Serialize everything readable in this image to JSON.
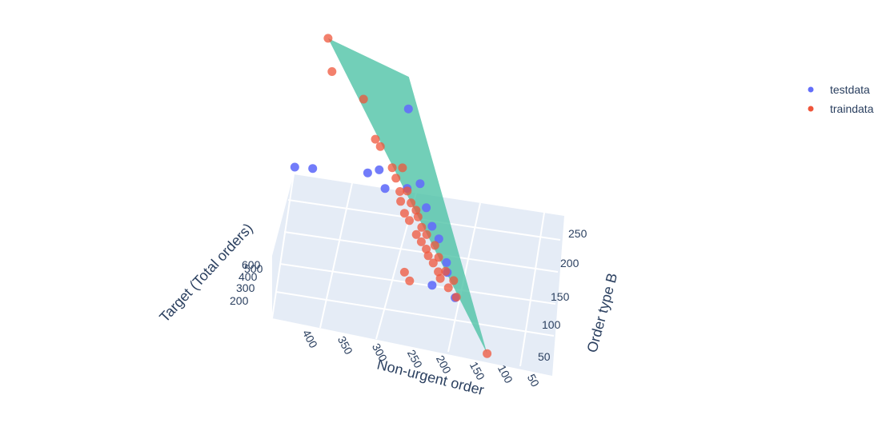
{
  "chart_data": {
    "type": "scatter3d",
    "axes": {
      "x": {
        "title": "Non-urgent order",
        "ticks": [
          400,
          350,
          300,
          250,
          200,
          150,
          100,
          50
        ]
      },
      "y": {
        "title": "Order type B",
        "ticks": [
          50,
          100,
          150,
          200,
          250
        ]
      },
      "z": {
        "title": "Target (Total orders)",
        "ticks": [
          200,
          300,
          400,
          500,
          600
        ]
      }
    },
    "legend": {
      "placement": "top-right",
      "entries": [
        {
          "name": "testdata",
          "color": "#636efa"
        },
        {
          "name": "traindata",
          "color": "#ef553b"
        }
      ]
    },
    "surface": {
      "name": "regression plane",
      "color": "#4fc3a6"
    },
    "series": [
      {
        "name": "testdata",
        "color": "#636efa",
        "points": [
          {
            "x": 395,
            "y": 110,
            "z": 560
          },
          {
            "x": 375,
            "y": 130,
            "z": 520
          },
          {
            "x": 265,
            "y": 250,
            "z": 510
          },
          {
            "x": 300,
            "y": 165,
            "z": 460
          },
          {
            "x": 285,
            "y": 175,
            "z": 455
          },
          {
            "x": 270,
            "y": 160,
            "z": 430
          },
          {
            "x": 240,
            "y": 175,
            "z": 410
          },
          {
            "x": 225,
            "y": 190,
            "z": 400
          },
          {
            "x": 205,
            "y": 165,
            "z": 380
          },
          {
            "x": 190,
            "y": 150,
            "z": 355
          },
          {
            "x": 175,
            "y": 140,
            "z": 340
          },
          {
            "x": 155,
            "y": 120,
            "z": 310
          },
          {
            "x": 150,
            "y": 110,
            "z": 300
          },
          {
            "x": 130,
            "y": 90,
            "z": 265
          },
          {
            "x": 170,
            "y": 95,
            "z": 280
          }
        ]
      },
      {
        "name": "traindata",
        "color": "#ef553b",
        "points": [
          {
            "x": 405,
            "y": 275,
            "z": 640
          },
          {
            "x": 385,
            "y": 240,
            "z": 610
          },
          {
            "x": 330,
            "y": 230,
            "z": 560
          },
          {
            "x": 300,
            "y": 200,
            "z": 500
          },
          {
            "x": 290,
            "y": 195,
            "z": 490
          },
          {
            "x": 265,
            "y": 180,
            "z": 460
          },
          {
            "x": 255,
            "y": 170,
            "z": 450
          },
          {
            "x": 250,
            "y": 185,
            "z": 455
          },
          {
            "x": 245,
            "y": 160,
            "z": 430
          },
          {
            "x": 240,
            "y": 150,
            "z": 420
          },
          {
            "x": 235,
            "y": 165,
            "z": 425
          },
          {
            "x": 230,
            "y": 140,
            "z": 405
          },
          {
            "x": 225,
            "y": 155,
            "z": 410
          },
          {
            "x": 220,
            "y": 135,
            "z": 395
          },
          {
            "x": 215,
            "y": 150,
            "z": 400
          },
          {
            "x": 210,
            "y": 145,
            "z": 390
          },
          {
            "x": 205,
            "y": 125,
            "z": 375
          },
          {
            "x": 200,
            "y": 135,
            "z": 380
          },
          {
            "x": 195,
            "y": 120,
            "z": 365
          },
          {
            "x": 190,
            "y": 130,
            "z": 370
          },
          {
            "x": 185,
            "y": 115,
            "z": 355
          },
          {
            "x": 180,
            "y": 110,
            "z": 345
          },
          {
            "x": 175,
            "y": 125,
            "z": 350
          },
          {
            "x": 170,
            "y": 105,
            "z": 335
          },
          {
            "x": 165,
            "y": 115,
            "z": 335
          },
          {
            "x": 160,
            "y": 100,
            "z": 320
          },
          {
            "x": 155,
            "y": 95,
            "z": 310
          },
          {
            "x": 150,
            "y": 105,
            "z": 315
          },
          {
            "x": 140,
            "y": 90,
            "z": 295
          },
          {
            "x": 135,
            "y": 100,
            "z": 300
          },
          {
            "x": 125,
            "y": 85,
            "z": 280
          },
          {
            "x": 210,
            "y": 85,
            "z": 330
          },
          {
            "x": 200,
            "y": 80,
            "z": 315
          },
          {
            "x": 60,
            "y": 45,
            "z": 200
          }
        ]
      }
    ]
  }
}
